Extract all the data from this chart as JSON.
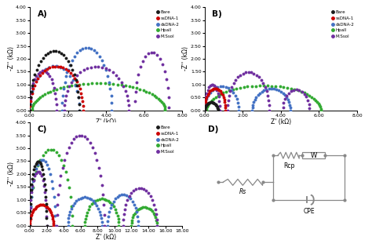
{
  "panel_A": {
    "title": "A)",
    "xlabel": "Z' (kΩ)",
    "ylabel": "-Z'' (kΩ)",
    "xlim": [
      0,
      8.0
    ],
    "ylim": [
      0,
      4.0
    ],
    "xticks": [
      0.0,
      2.0,
      4.0,
      6.0,
      8.0
    ],
    "yticks": [
      0.0,
      0.5,
      1.0,
      1.5,
      2.0,
      2.5,
      3.0,
      3.5,
      4.0
    ]
  },
  "panel_B": {
    "title": "B)",
    "xlabel": "Z' (kΩ)",
    "ylabel": "-Z'' (kΩ)",
    "xlim": [
      0,
      8.0
    ],
    "ylim": [
      0,
      4.0
    ],
    "xticks": [
      0.0,
      2.0,
      4.0,
      6.0,
      8.0
    ],
    "yticks": [
      0.0,
      0.5,
      1.0,
      1.5,
      2.0,
      2.5,
      3.0,
      3.5,
      4.0
    ]
  },
  "panel_C": {
    "title": "C)",
    "xlabel": "Z' (kΩ)",
    "ylabel": "-Z'' (kΩ)",
    "xlim": [
      0,
      18.0
    ],
    "ylim": [
      0,
      4.0
    ],
    "xticks": [
      0.0,
      2.0,
      4.0,
      6.0,
      8.0,
      10.0,
      12.0,
      14.0,
      16.0,
      18.0
    ],
    "yticks": [
      0.0,
      0.5,
      1.0,
      1.5,
      2.0,
      2.5,
      3.0,
      3.5,
      4.0
    ]
  },
  "colors": {
    "Bare": "#1a1a1a",
    "ssDNA-1": "#cc0000",
    "dsDNA-2": "#4472c4",
    "HpaII": "#33aa33",
    "M.SsoI": "#7030a0"
  },
  "legend_labels": [
    "Bare",
    "ssDNA-1",
    "dsDNA-2",
    "HpaII",
    "M.SsoI"
  ],
  "marker_size": 2.8,
  "background_color": "#ffffff"
}
